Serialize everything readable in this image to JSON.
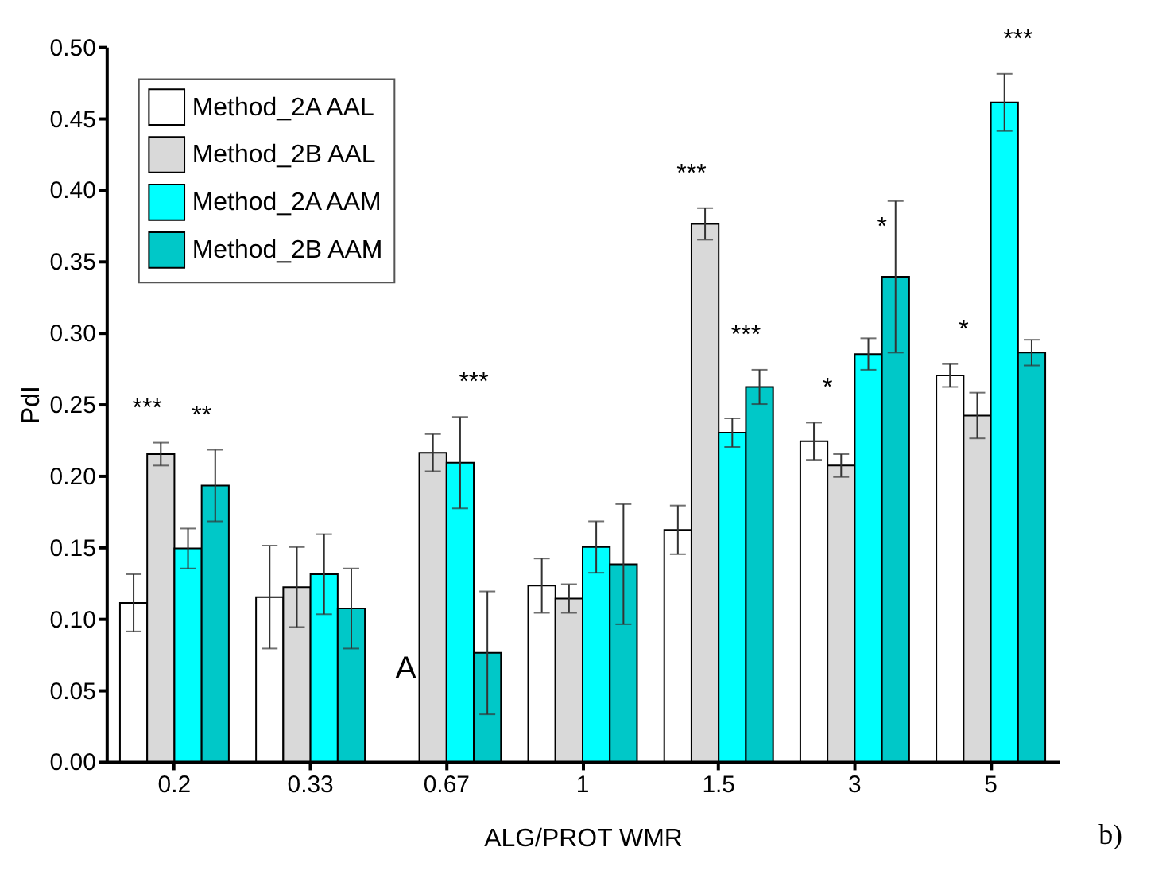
{
  "chart_data": {
    "type": "bar",
    "xlabel": "ALG/PROT WMR",
    "ylabel": "PdI",
    "categories": [
      "0.2",
      "0.33",
      "0.67",
      "1",
      "1.5",
      "3",
      "5"
    ],
    "series": [
      {
        "name": "Method_2A AAL",
        "color": "#ffffff",
        "values": [
          0.111,
          0.115,
          null,
          0.123,
          0.162,
          0.224,
          0.27
        ],
        "errors": [
          0.02,
          0.036,
          null,
          0.019,
          0.017,
          0.013,
          0.008
        ]
      },
      {
        "name": "Method_2B AAL",
        "color": "#d9d9d9",
        "values": [
          0.215,
          0.122,
          0.216,
          0.114,
          0.376,
          0.207,
          0.242
        ],
        "errors": [
          0.008,
          0.028,
          0.013,
          0.01,
          0.011,
          0.008,
          0.016
        ]
      },
      {
        "name": "Method_2A AAM",
        "color": "#00ffff",
        "values": [
          0.149,
          0.131,
          0.209,
          0.15,
          0.23,
          0.285,
          0.461
        ],
        "errors": [
          0.014,
          0.028,
          0.032,
          0.018,
          0.01,
          0.011,
          0.02
        ]
      },
      {
        "name": "Method_2B AAM",
        "color": "#00c8c8",
        "values": [
          0.193,
          0.107,
          0.076,
          0.138,
          0.262,
          0.339,
          0.286
        ],
        "errors": [
          0.025,
          0.028,
          0.043,
          0.042,
          0.012,
          0.053,
          0.009
        ]
      }
    ],
    "ylim": [
      0,
      0.5
    ],
    "yticks": [
      {
        "value": 0,
        "label": "0.00"
      },
      {
        "value": 0.05,
        "label": "0.05"
      },
      {
        "value": 0.1,
        "label": "0.10"
      },
      {
        "value": 0.15,
        "label": "0.15"
      },
      {
        "value": 0.2,
        "label": "0.20"
      },
      {
        "value": 0.25,
        "label": "0.25"
      },
      {
        "value": 0.3,
        "label": "0.30"
      },
      {
        "value": 0.35,
        "label": "0.35"
      },
      {
        "value": 0.4,
        "label": "0.40"
      },
      {
        "value": 0.45,
        "label": "0.45"
      },
      {
        "value": 0.5,
        "label": "0.50"
      }
    ],
    "legend": "top left",
    "grid": false,
    "annotations": [
      {
        "text": "***",
        "x": "0.2",
        "y": 0.223
      },
      {
        "text": "**",
        "x": "0.2",
        "y": 0.218
      },
      {
        "text": "***",
        "x": "0.67",
        "y": 0.241
      },
      {
        "text": "***",
        "x": "1.5",
        "y": 0.387
      },
      {
        "text": "***",
        "x": "1.5",
        "y": 0.274
      },
      {
        "text": "*",
        "x": "3",
        "y": 0.237
      },
      "*",
      {
        "text": "*",
        "x": "5",
        "y": 0.278
      },
      {
        "text": "***",
        "x": "5",
        "y": 0.481
      },
      {
        "text": "A",
        "x": "0.67",
        "y": 0.065
      },
      "b)"
    ]
  }
}
